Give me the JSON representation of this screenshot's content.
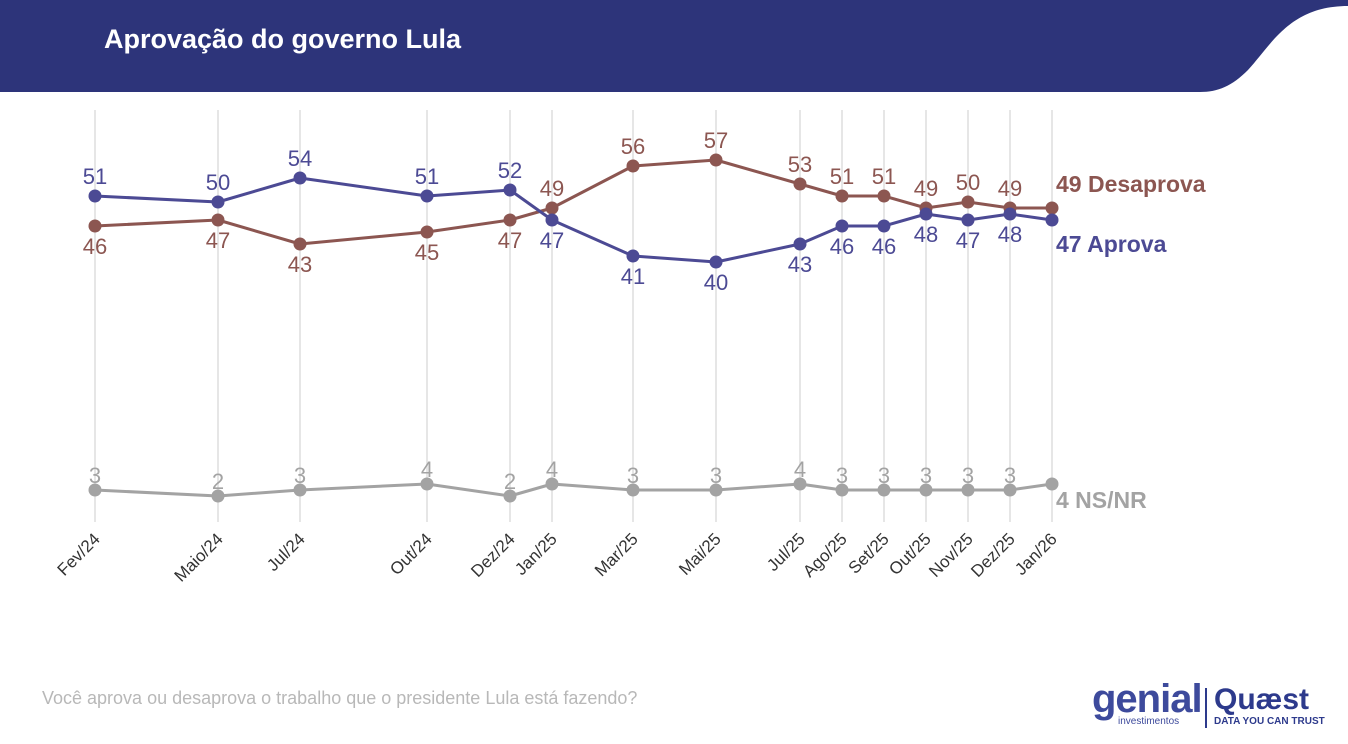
{
  "header": {
    "title": "Aprovação do governo Lula"
  },
  "colors": {
    "header_bg": "#2d347a",
    "disapprove": "#8c5651",
    "approve": "#4c4a94",
    "ns_nr": "#a3a3a3",
    "grid": "#e6e6e6"
  },
  "chart_data": {
    "type": "line",
    "categories": [
      "Fev/24",
      "Maio/24",
      "Jul/24",
      "Out/24",
      "Dez/24",
      "Jan/25",
      "Mar/25",
      "Mai/25",
      "Jul/25",
      "Ago/25",
      "Set/25",
      "Out/25",
      "Nov/25",
      "Dez/25",
      "Jan/26"
    ],
    "series": [
      {
        "name": "Desaprova",
        "end_label": "49 Desaprova",
        "values": [
          46,
          47,
          43,
          45,
          47,
          49,
          56,
          57,
          53,
          51,
          51,
          49,
          50,
          49,
          49
        ]
      },
      {
        "name": "Aprova",
        "end_label": "47 Aprova",
        "values": [
          51,
          50,
          54,
          51,
          52,
          47,
          41,
          40,
          43,
          46,
          46,
          48,
          47,
          48,
          47
        ]
      },
      {
        "name": "NS/NR",
        "end_label": "4 NS/NR",
        "values": [
          3,
          2,
          3,
          4,
          2,
          4,
          3,
          3,
          4,
          3,
          3,
          3,
          3,
          3,
          4
        ]
      }
    ],
    "grid": true,
    "legend": "right, end-of-line labels"
  },
  "footer": {
    "question": "Você aprova ou desaprova o trabalho que o presidente Lula está fazendo?",
    "logo_genial": "genial",
    "logo_genial_sub": "investimentos",
    "logo_quaest": "Quæst",
    "logo_quaest_sub": "DATA YOU CAN TRUST"
  }
}
